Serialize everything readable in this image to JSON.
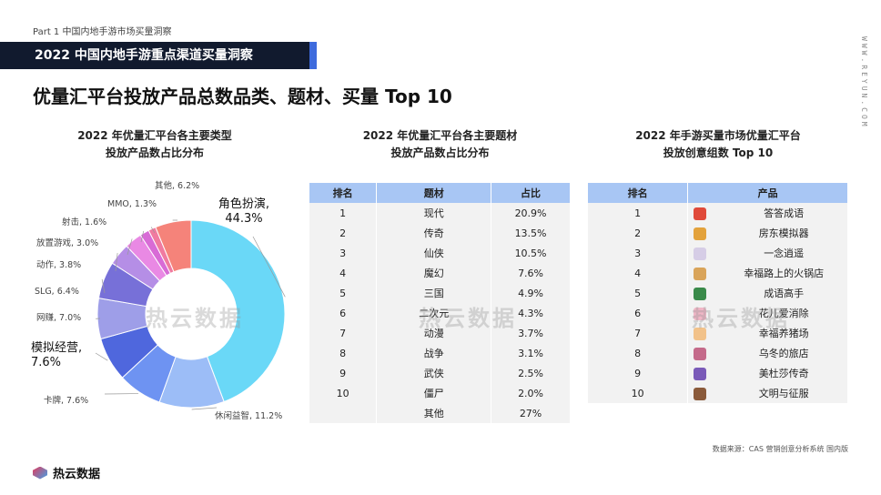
{
  "header": {
    "part_label": "Part 1  中国内地手游市场买量洞察",
    "banner": "2022 中国内地手游重点渠道买量洞察",
    "side_url": "WWW.REYUN.COM",
    "main_title": "优量汇平台投放产品总数品类、题材、买量 Top 10"
  },
  "watermark": "热云数据",
  "sections": {
    "donut_title_1": "2022 年优量汇平台各主要类型",
    "donut_title_2": "投放产品数占比分布",
    "theme_title_1": "2022 年优量汇平台各主要题材",
    "theme_title_2": "投放产品数占比分布",
    "top_title_1": "2022 年手游买量市场优量汇平台",
    "top_title_2": "投放创意组数 Top 10"
  },
  "chart_data": {
    "type": "pie",
    "values_unit": "%",
    "slices": [
      {
        "label": "角色扮演",
        "value": 44.3,
        "display": "角色扮演,\n44.3%",
        "color": "#6ad8f7"
      },
      {
        "label": "休闲益智",
        "value": 11.2,
        "display": "休闲益智, 11.2%",
        "color": "#9cbdf7"
      },
      {
        "label": "卡牌",
        "value": 7.6,
        "display": "卡牌, 7.6%",
        "color": "#6e93f2"
      },
      {
        "label": "模拟经营",
        "value": 7.6,
        "display": "模拟经营,\n7.6%",
        "color": "#4f67dd"
      },
      {
        "label": "网赚",
        "value": 7.0,
        "display": "网赚, 7.0%",
        "color": "#9e9ee8"
      },
      {
        "label": "SLG",
        "value": 6.4,
        "display": "SLG, 6.4%",
        "color": "#7770d8"
      },
      {
        "label": "动作",
        "value": 3.8,
        "display": "动作, 3.8%",
        "color": "#b58ee6"
      },
      {
        "label": "放置游戏",
        "value": 3.0,
        "display": "放置游戏, 3.0%",
        "color": "#e989e4"
      },
      {
        "label": "射击",
        "value": 1.6,
        "display": "射击, 1.6%",
        "color": "#d86bd6"
      },
      {
        "label": "MMO",
        "value": 1.3,
        "display": "MMO, 1.3%",
        "color": "#f07aa0"
      },
      {
        "label": "其他",
        "value": 6.2,
        "display": "其他, 6.2%",
        "color": "#f5837a"
      }
    ]
  },
  "theme_table": {
    "headers": [
      "排名",
      "题材",
      "占比"
    ],
    "rows": [
      [
        "1",
        "现代",
        "20.9%"
      ],
      [
        "2",
        "传奇",
        "13.5%"
      ],
      [
        "3",
        "仙侠",
        "10.5%"
      ],
      [
        "4",
        "魔幻",
        "7.6%"
      ],
      [
        "5",
        "三国",
        "4.9%"
      ],
      [
        "6",
        "二次元",
        "4.3%"
      ],
      [
        "7",
        "动漫",
        "3.7%"
      ],
      [
        "8",
        "战争",
        "3.1%"
      ],
      [
        "9",
        "武侠",
        "2.5%"
      ],
      [
        "10",
        "僵尸",
        "2.0%"
      ],
      [
        "",
        "其他",
        "27%"
      ]
    ]
  },
  "top_table": {
    "headers": [
      "排名",
      "产品"
    ],
    "rows": [
      {
        "rank": "1",
        "name": "答答成语",
        "icon": "game-icon",
        "color": "#e04a3a"
      },
      {
        "rank": "2",
        "name": "房东模拟器",
        "icon": "game-icon",
        "color": "#e3a23c"
      },
      {
        "rank": "3",
        "name": "一念逍遥",
        "icon": "game-icon",
        "color": "#d6cde6"
      },
      {
        "rank": "4",
        "name": "幸福路上的火锅店",
        "icon": "game-icon",
        "color": "#d9a45a"
      },
      {
        "rank": "5",
        "name": "成语高手",
        "icon": "game-icon",
        "color": "#3a8a4a"
      },
      {
        "rank": "6",
        "name": "花儿爱消除",
        "icon": "game-icon",
        "color": "#f0b6c6"
      },
      {
        "rank": "7",
        "name": "幸福养猪场",
        "icon": "game-icon",
        "color": "#f2c28a"
      },
      {
        "rank": "8",
        "name": "乌冬的旅店",
        "icon": "game-icon",
        "color": "#c46a8a"
      },
      {
        "rank": "9",
        "name": "美杜莎传奇",
        "icon": "game-icon",
        "color": "#7a5ab8"
      },
      {
        "rank": "10",
        "name": "文明与征服",
        "icon": "game-icon",
        "color": "#8a5a3a"
      }
    ]
  },
  "footer": {
    "source": "数据来源：CAS 营销创意分析系统 国内版",
    "logo_text": "热云数据"
  }
}
